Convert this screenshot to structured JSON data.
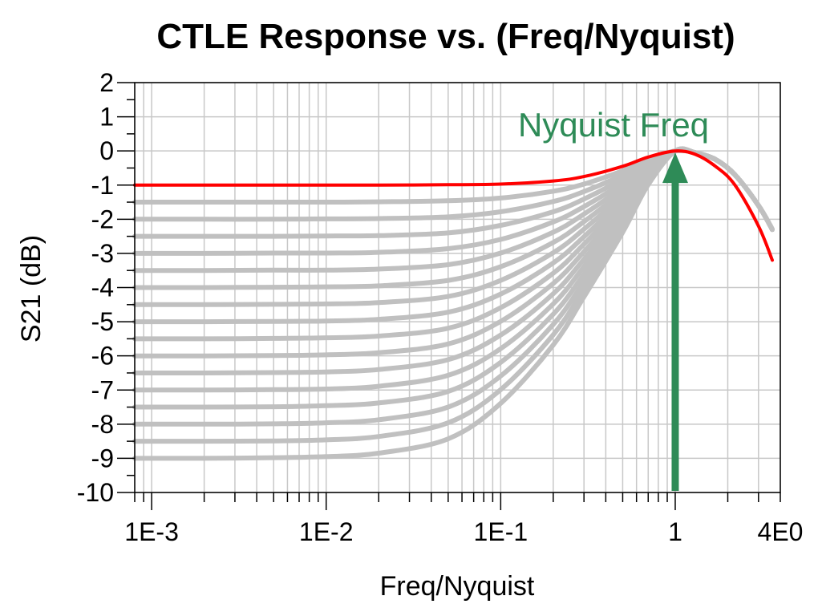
{
  "chart_data": {
    "type": "line",
    "title": "CTLE Response vs. (Freq/Nyquist)",
    "xlabel": "Freq/Nyquist",
    "ylabel": "S21 (dB)",
    "x_scale": "log",
    "xlim": [
      0.0008,
      4.0
    ],
    "ylim": [
      -10,
      2
    ],
    "grid": true,
    "x_tick_labels": [
      {
        "value": 0.001,
        "label": "1E-3"
      },
      {
        "value": 0.01,
        "label": "1E-2"
      },
      {
        "value": 0.1,
        "label": "1E-1"
      },
      {
        "value": 1,
        "label": "1"
      },
      {
        "value": 4,
        "label": "4E0"
      }
    ],
    "y_ticks": [
      2,
      1,
      0,
      -1,
      -2,
      -3,
      -4,
      -5,
      -6,
      -7,
      -8,
      -9,
      -10
    ],
    "colors": {
      "gray_family": "#c0c0c0",
      "highlight": "#ff0000",
      "annotation": "#2e8b57",
      "grid": "#c8c8c8"
    },
    "x": [
      0.0008,
      0.001,
      0.002,
      0.005,
      0.01,
      0.02,
      0.05,
      0.1,
      0.2,
      0.3,
      0.5,
      0.7,
      1.0,
      1.3,
      1.7,
      2.2,
      3.0,
      3.6
    ],
    "series": [
      {
        "color": "#ff0000",
        "highlighted": true,
        "values": [
          -1.0,
          -1.0,
          -1.0,
          -1.0,
          -1.0,
          -1.0,
          -0.99,
          -0.97,
          -0.88,
          -0.75,
          -0.45,
          -0.18,
          0.0,
          -0.1,
          -0.45,
          -1.0,
          -2.2,
          -3.2
        ]
      },
      {
        "color": "#c0c0c0",
        "values": [
          -1.5,
          -1.5,
          -1.5,
          -1.5,
          -1.5,
          -1.49,
          -1.46,
          -1.38,
          -1.18,
          -0.97,
          -0.58,
          -0.24,
          0.0,
          -0.05,
          -0.25,
          -0.7,
          -1.6,
          -2.3
        ]
      },
      {
        "color": "#c0c0c0",
        "values": [
          -2.0,
          -2.0,
          -2.0,
          -2.0,
          -1.99,
          -1.98,
          -1.93,
          -1.78,
          -1.48,
          -1.19,
          -0.7,
          -0.29,
          0.0,
          -0.05,
          -0.25,
          -0.7,
          -1.6,
          -2.3
        ]
      },
      {
        "color": "#c0c0c0",
        "values": [
          -2.5,
          -2.5,
          -2.5,
          -2.5,
          -2.49,
          -2.48,
          -2.4,
          -2.18,
          -1.78,
          -1.41,
          -0.82,
          -0.34,
          0.0,
          -0.05,
          -0.25,
          -0.7,
          -1.6,
          -2.3
        ]
      },
      {
        "color": "#c0c0c0",
        "values": [
          -3.0,
          -3.0,
          -3.0,
          -2.99,
          -2.99,
          -2.97,
          -2.86,
          -2.59,
          -2.08,
          -1.63,
          -0.94,
          -0.39,
          0.0,
          -0.05,
          -0.25,
          -0.7,
          -1.6,
          -2.3
        ]
      },
      {
        "color": "#c0c0c0",
        "values": [
          -3.5,
          -3.5,
          -3.5,
          -3.49,
          -3.49,
          -3.46,
          -3.33,
          -2.99,
          -2.38,
          -1.85,
          -1.06,
          -0.44,
          0.0,
          -0.05,
          -0.25,
          -0.7,
          -1.6,
          -2.3
        ]
      },
      {
        "color": "#c0c0c0",
        "values": [
          -4.0,
          -4.0,
          -4.0,
          -3.99,
          -3.98,
          -3.95,
          -3.79,
          -3.39,
          -2.68,
          -2.07,
          -1.18,
          -0.49,
          0.0,
          -0.05,
          -0.25,
          -0.7,
          -1.6,
          -2.3
        ]
      },
      {
        "color": "#c0c0c0",
        "values": [
          -4.5,
          -4.5,
          -4.5,
          -4.49,
          -4.48,
          -4.44,
          -4.26,
          -3.79,
          -2.98,
          -2.29,
          -1.3,
          -0.54,
          0.0,
          -0.05,
          -0.25,
          -0.7,
          -1.6,
          -2.3
        ]
      },
      {
        "color": "#c0c0c0",
        "values": [
          -5.0,
          -5.0,
          -5.0,
          -4.99,
          -4.98,
          -4.93,
          -4.72,
          -4.19,
          -3.28,
          -2.51,
          -1.42,
          -0.59,
          0.0,
          -0.05,
          -0.25,
          -0.7,
          -1.6,
          -2.3
        ]
      },
      {
        "color": "#c0c0c0",
        "values": [
          -5.5,
          -5.5,
          -5.5,
          -5.49,
          -5.47,
          -5.42,
          -5.19,
          -4.59,
          -3.58,
          -2.73,
          -1.54,
          -0.64,
          0.0,
          -0.05,
          -0.25,
          -0.7,
          -1.6,
          -2.3
        ]
      },
      {
        "color": "#c0c0c0",
        "values": [
          -6.0,
          -6.0,
          -6.0,
          -5.99,
          -5.97,
          -5.91,
          -5.65,
          -4.99,
          -3.88,
          -2.95,
          -1.66,
          -0.69,
          0.0,
          -0.05,
          -0.25,
          -0.7,
          -1.6,
          -2.3
        ]
      },
      {
        "color": "#c0c0c0",
        "values": [
          -6.5,
          -6.5,
          -6.5,
          -6.49,
          -6.47,
          -6.4,
          -6.11,
          -5.39,
          -4.18,
          -3.17,
          -1.78,
          -0.74,
          0.0,
          -0.05,
          -0.25,
          -0.7,
          -1.6,
          -2.3
        ]
      },
      {
        "color": "#c0c0c0",
        "values": [
          -7.0,
          -7.0,
          -7.0,
          -6.99,
          -6.97,
          -6.89,
          -6.57,
          -5.79,
          -4.48,
          -3.39,
          -1.9,
          -0.79,
          0.0,
          -0.05,
          -0.25,
          -0.7,
          -1.6,
          -2.3
        ]
      },
      {
        "color": "#c0c0c0",
        "values": [
          -7.5,
          -7.5,
          -7.5,
          -7.49,
          -7.46,
          -7.38,
          -7.04,
          -6.19,
          -4.78,
          -3.61,
          -2.02,
          -0.84,
          0.0,
          -0.05,
          -0.25,
          -0.7,
          -1.6,
          -2.3
        ]
      },
      {
        "color": "#c0c0c0",
        "values": [
          -8.0,
          -8.0,
          -8.0,
          -7.99,
          -7.96,
          -7.87,
          -7.5,
          -6.59,
          -5.08,
          -3.83,
          -2.14,
          -0.89,
          0.0,
          -0.05,
          -0.25,
          -0.7,
          -1.6,
          -2.3
        ]
      },
      {
        "color": "#c0c0c0",
        "values": [
          -8.5,
          -8.5,
          -8.5,
          -8.49,
          -8.46,
          -8.36,
          -7.96,
          -6.99,
          -5.38,
          -4.05,
          -2.26,
          -0.94,
          0.0,
          -0.05,
          -0.25,
          -0.7,
          -1.6,
          -2.3
        ]
      },
      {
        "color": "#c0c0c0",
        "values": [
          -9.0,
          -9.0,
          -9.0,
          -8.98,
          -8.95,
          -8.85,
          -8.43,
          -7.39,
          -5.68,
          -4.27,
          -2.38,
          -0.99,
          0.0,
          -0.05,
          -0.25,
          -0.7,
          -1.6,
          -2.3
        ]
      }
    ],
    "annotations": [
      {
        "text": "Nyquist Freq",
        "type": "arrow",
        "x": 1.0,
        "y_from": -10,
        "y_to": 0,
        "color": "#2e8b57"
      }
    ]
  }
}
